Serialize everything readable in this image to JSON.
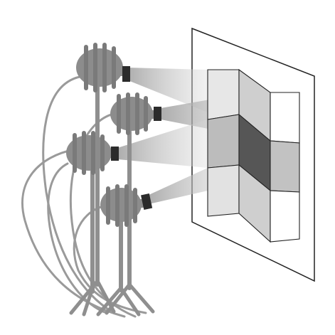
{
  "illustration": {
    "colors": {
      "background": "#ffffff",
      "projector_body": "#8c8c8c",
      "projector_fin": "#7a7a7a",
      "projector_lens": "#2b2b2b",
      "stand": "#8f8f8f",
      "cable": "#9a9a9a",
      "panel_stroke": "#222222",
      "panel_fill": "#ffffff",
      "beam": "#bdbdbd",
      "tile_light": "#e9e9e9",
      "tile_mid": "#b8b8b8",
      "tile_dark": "#555555",
      "tile_white": "#ffffff"
    },
    "projector_count": 4,
    "projection_grid": {
      "columns": 3,
      "rows": 3
    }
  }
}
